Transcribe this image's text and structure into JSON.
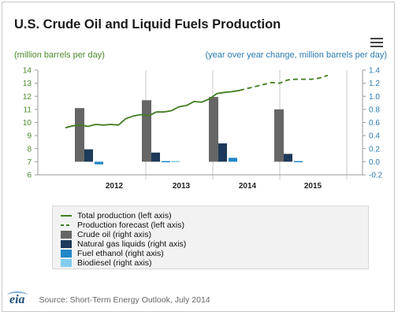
{
  "title": "U.S. Crude Oil and Liquid Fuels Production",
  "unit_left": "(million barrels per day)",
  "unit_right": "(year over year change, million barrels per day)",
  "source": "Source: Short-Term Energy Outlook, July 2014",
  "logo": "eia",
  "colors": {
    "total_line": "#3f7d1e",
    "crude": "#666666",
    "ngl": "#1d3a5a",
    "ethanol": "#1f86c8",
    "biodiesel": "#82cdef",
    "left_axis": "#4a8a2a",
    "right_axis": "#2a7bb0"
  },
  "chart_data": {
    "type": "bar",
    "title": "U.S. Crude Oil and Liquid Fuels Production",
    "ylabel": "(million barrels per day)",
    "y2label": "(year over year change, million barrels per day)",
    "ylim": [
      6,
      14
    ],
    "y2lim": [
      -0.2,
      1.4
    ],
    "left_ticks": [
      "6",
      "7",
      "8",
      "9",
      "10",
      "11",
      "12",
      "13",
      "14"
    ],
    "right_ticks": [
      "-0.2",
      "0.0",
      "0.2",
      "0.4",
      "0.6",
      "0.8",
      "1.0",
      "1.2",
      "1.4"
    ],
    "categories": [
      "2012",
      "2013",
      "2014",
      "2015"
    ],
    "bar_series": [
      {
        "name": "Crude oil (right axis)",
        "values": [
          0.82,
          0.94,
          0.99,
          0.8
        ]
      },
      {
        "name": "Natural gas liquids (right axis)",
        "values": [
          0.19,
          0.14,
          0.28,
          0.12
        ]
      },
      {
        "name": "Fuel ethanol (right axis)",
        "values": [
          -0.04,
          0.01,
          0.06,
          0.01
        ]
      },
      {
        "name": "Biodiesel (right axis)",
        "values": [
          0.0,
          0.01,
          0.0,
          0.0
        ]
      }
    ],
    "line_series": [
      {
        "name": "Total production (left axis)",
        "style": "solid",
        "values": [
          9.6,
          9.75,
          9.8,
          9.7,
          9.85,
          9.8,
          9.85,
          9.8,
          10.3,
          10.5,
          10.6,
          10.5,
          10.8,
          10.8,
          10.9,
          11.2,
          11.3,
          11.6,
          11.55,
          11.8,
          12.2,
          12.3,
          12.35,
          12.45
        ]
      },
      {
        "name": "Production forecast (left axis)",
        "style": "dashed",
        "values": [
          12.45,
          12.6,
          12.75,
          12.9,
          13.05,
          13.0,
          13.25,
          13.3,
          13.3,
          13.3,
          13.4,
          13.6
        ]
      }
    ],
    "legend_placement": "bottom",
    "grid": "vertical year separators"
  }
}
